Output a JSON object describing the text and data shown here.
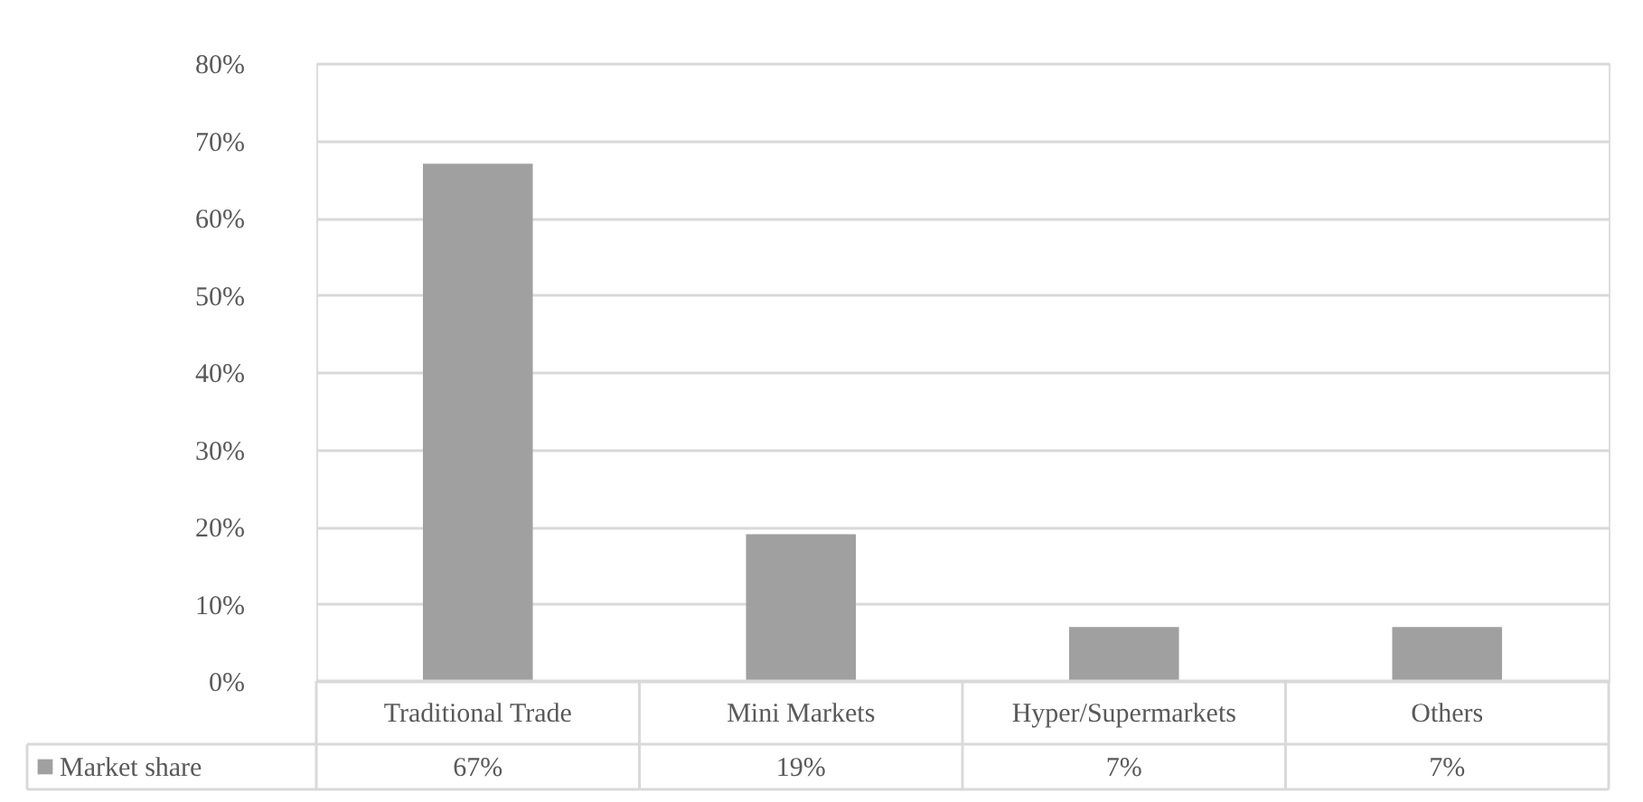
{
  "chart_data": {
    "type": "bar",
    "categories": [
      "Traditional Trade",
      "Mini Markets",
      "Hyper/Supermarkets",
      "Others"
    ],
    "series": [
      {
        "name": "Market share",
        "color": "#a0a0a0",
        "values": [
          67,
          19,
          7,
          7
        ],
        "value_labels": [
          "67%",
          "19%",
          "7%",
          "7%"
        ]
      }
    ],
    "ylim": [
      0,
      80
    ],
    "yticks": [
      {
        "value": 0,
        "label": "0%"
      },
      {
        "value": 10,
        "label": "10%"
      },
      {
        "value": 20,
        "label": "20%"
      },
      {
        "value": 30,
        "label": "30%"
      },
      {
        "value": 40,
        "label": "40%"
      },
      {
        "value": 50,
        "label": "50%"
      },
      {
        "value": 60,
        "label": "60%"
      },
      {
        "value": 70,
        "label": "70%"
      },
      {
        "value": 80,
        "label": "80%"
      }
    ],
    "grid": "y",
    "legend": "bottom left"
  }
}
